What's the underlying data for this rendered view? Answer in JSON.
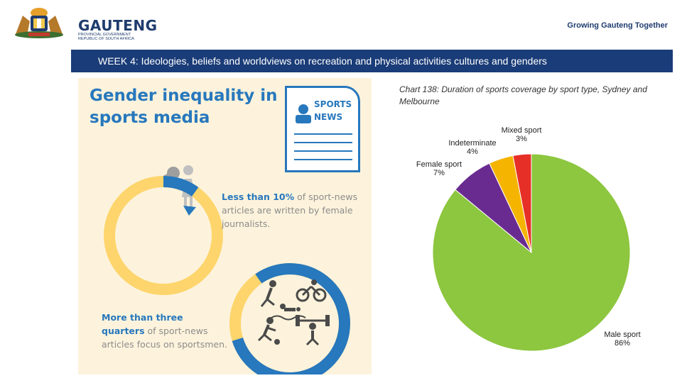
{
  "header": {
    "logo_name": "GAUTENG",
    "logo_sub_1": "PROVINCIAL GOVERNMENT",
    "logo_sub_2": "REPUBLIC OF SOUTH AFRICA",
    "tagline": "Growing Gauteng Together"
  },
  "slide": {
    "title": "WEEK 4: Ideologies, beliefs and worldviews on recreation and physical activities cultures and genders"
  },
  "infographic": {
    "title": "Gender inequality in sports media",
    "paper_label_1": "SPORTS",
    "paper_label_2": "NEWS",
    "stat1_bold": "Less than 10%",
    "stat1_rest": " of sport-news articles are written by female journalists.",
    "stat1_fraction": 0.1,
    "stat2_bold_1": "More than three",
    "stat2_bold_2": "quarters",
    "stat2_rest": " of sport-news articles focus on sportsmen.",
    "stat2_fraction": 0.8,
    "colors": {
      "blue": "#2778bd",
      "yellow": "#fdd56c",
      "background": "#fdf3dc",
      "grey": "#bfbfbf"
    },
    "icons": [
      "microphone-icon",
      "woman-icon",
      "soccer-player-icon",
      "cyclist-icon",
      "swimmer-icon",
      "runner-icon",
      "weightlifter-icon",
      "newspaper-icon"
    ]
  },
  "chart_data": {
    "type": "pie",
    "title": "Chart 138: Duration of sports coverage by sport type, Sydney and Melbourne",
    "slices": [
      {
        "name": "Male sport",
        "label": "86%",
        "value": 86,
        "color": "#8dc63f"
      },
      {
        "name": "Female sport",
        "label": "7%",
        "value": 7,
        "color": "#6a2b90"
      },
      {
        "name": "Indeterminate",
        "label": "4%",
        "value": 4,
        "color": "#f5b400"
      },
      {
        "name": "Mixed sport",
        "label": "3%",
        "value": 3,
        "color": "#e63027"
      }
    ]
  }
}
